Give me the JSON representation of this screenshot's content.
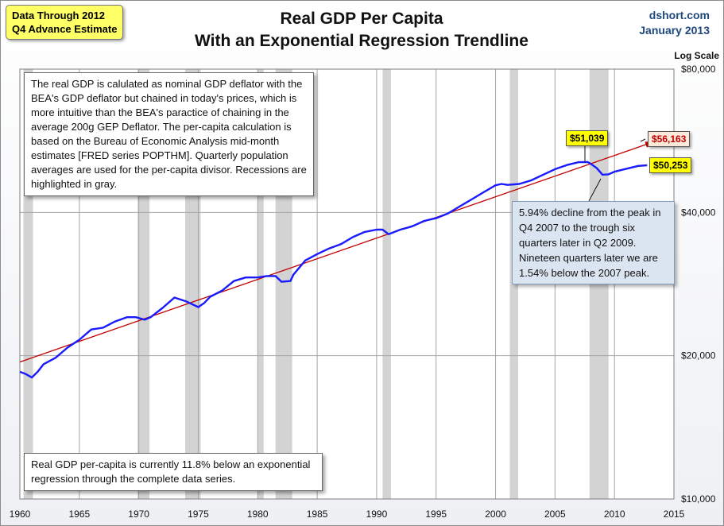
{
  "header": {
    "badge_line1": "Data Through 2012",
    "badge_line2": "Q4 Advance Estimate",
    "title_line1": "Real GDP Per Capita",
    "title_line2": "With an Exponential Regression Trendline",
    "source": "dshort.com",
    "date": "January 2013",
    "scale_label": "Log Scale"
  },
  "notes": {
    "methodology": "The real GDP is calulated as nominal GDP deflator with the BEA's GDP deflator but chained in today's prices, which is more intuitive than the BEA's paractice of chaining in the average 200g GEP Deflator. The per-capita calculation is based on the Bureau of Economic Analysis mid-month estimates [FRED series POPTHM]. Quarterly population averages are used for the per-capita divisor. Recessions are highlighted in gray.",
    "decline": "5.94% decline from the peak in Q4 2007 to the trough six quarters later in Q2 2009. Nineteen quarters later we are 1.54% below the 2007 peak.",
    "regression": "Real GDP per-capita is currently 11.8% below an exponential regression through the complete data series."
  },
  "labels": {
    "peak": "$51,039",
    "trend_end": "$56,163",
    "current": "$50,253"
  },
  "colors": {
    "series": "#1a1aff",
    "trend": "#c00000",
    "recession": "#d3d3d3",
    "badge": "#ffff66",
    "trend_tag": "#fde9d9",
    "callout": "#dbe5f1",
    "title_blue": "#1f497d"
  },
  "chart_data": {
    "type": "line",
    "title": "Real GDP Per Capita",
    "subtitle": "With an Exponential Regression Trendline",
    "xlim": [
      1960,
      2015
    ],
    "ylim": [
      10000,
      80000
    ],
    "y_scale": "log",
    "x_ticks": [
      1960,
      1965,
      1970,
      1975,
      1980,
      1985,
      1990,
      1995,
      2000,
      2005,
      2010,
      2015
    ],
    "y_ticks": [
      10000,
      20000,
      40000,
      80000
    ],
    "y_tick_labels": [
      "$10,000",
      "$20,000",
      "$40,000",
      "$80,000"
    ],
    "grid": true,
    "recessions": [
      [
        1960.3,
        1961.1
      ],
      [
        1969.9,
        1970.9
      ],
      [
        1973.9,
        1975.2
      ],
      [
        1980.0,
        1980.5
      ],
      [
        1981.5,
        1982.9
      ],
      [
        1990.5,
        1991.2
      ],
      [
        2001.2,
        2001.9
      ],
      [
        2007.9,
        2009.5
      ]
    ],
    "series": [
      {
        "name": "Real GDP Per Capita",
        "x": [
          1960,
          1960.5,
          1961,
          1961.5,
          1962,
          1963,
          1964,
          1965,
          1966,
          1967,
          1968,
          1969,
          1969.75,
          1970.5,
          1971,
          1972,
          1973,
          1974,
          1975,
          1975.5,
          1976,
          1977,
          1978,
          1979,
          1980,
          1980.75,
          1981.5,
          1982,
          1982.75,
          1983,
          1984,
          1985,
          1986,
          1987,
          1988,
          1989,
          1990,
          1990.5,
          1991,
          1992,
          1993,
          1994,
          1995,
          1996,
          1997,
          1998,
          1999,
          2000,
          2000.5,
          2001,
          2002,
          2003,
          2004,
          2005,
          2006,
          2007,
          2007.75,
          2008,
          2008.5,
          2009,
          2009.5,
          2010,
          2011,
          2012,
          2012.75
        ],
        "values": [
          18500,
          18300,
          18000,
          18500,
          19200,
          19800,
          20800,
          21600,
          22700,
          22900,
          23600,
          24100,
          24100,
          23800,
          24100,
          25200,
          26500,
          26000,
          25300,
          25800,
          26600,
          27400,
          28700,
          29200,
          29200,
          29400,
          29400,
          28600,
          28700,
          29600,
          31700,
          32700,
          33600,
          34300,
          35500,
          36400,
          36800,
          36800,
          36000,
          36800,
          37400,
          38400,
          38900,
          39800,
          41200,
          42600,
          44100,
          45600,
          45900,
          45700,
          45900,
          46700,
          48000,
          49300,
          50300,
          51000,
          51039,
          50600,
          49600,
          48000,
          48100,
          48700,
          49400,
          50100,
          50253
        ]
      },
      {
        "name": "Exponential Regression Trendline",
        "x": [
          1960,
          2013.2
        ],
        "values": [
          19400,
          56163
        ]
      }
    ],
    "annotations": [
      "$51,039",
      "$56,163",
      "$50,253"
    ]
  }
}
